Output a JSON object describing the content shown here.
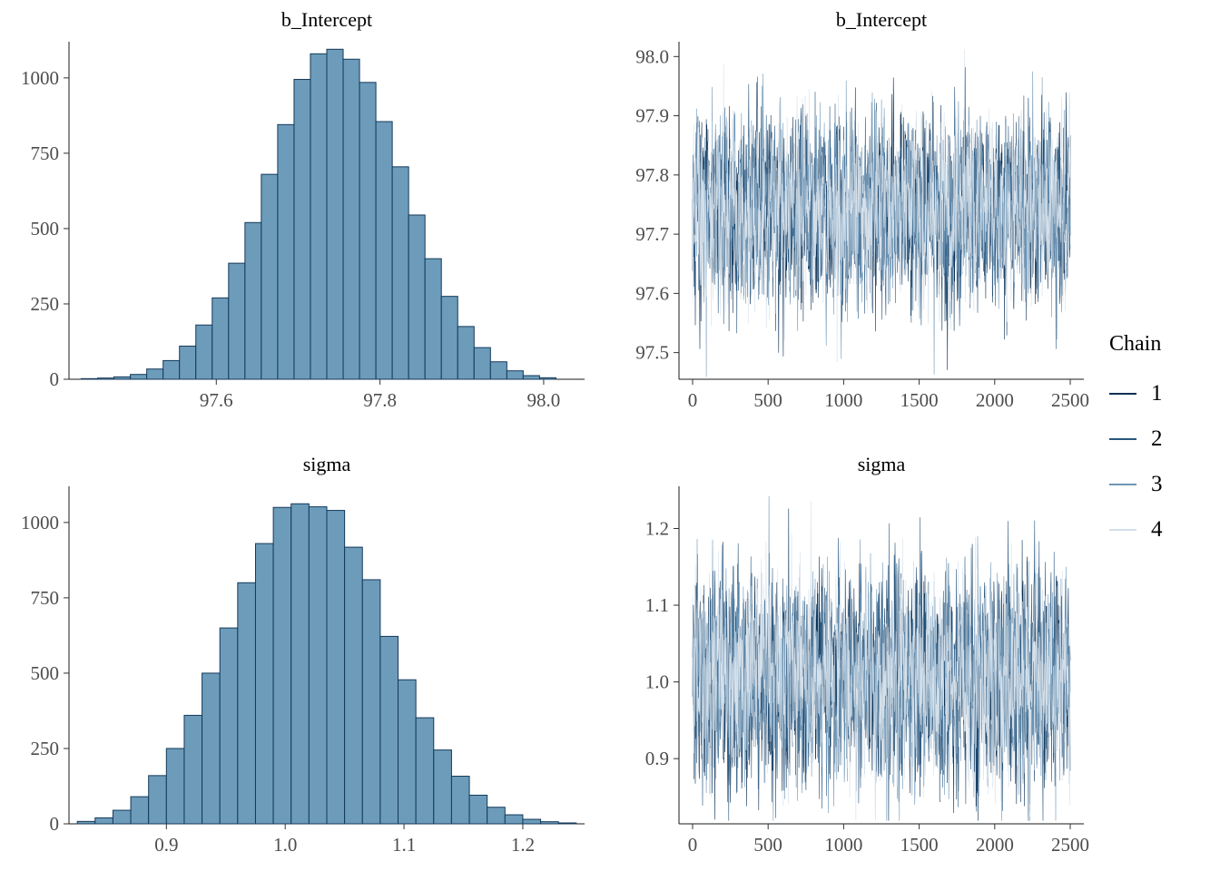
{
  "figure": {
    "background": "#ffffff",
    "description_title": "Posterior histograms and MCMC trace plots"
  },
  "style": {
    "hist_fill": "#6d9cba",
    "hist_stroke": "#14395a",
    "axis_color": "#1a1a1a",
    "tick_color": "#333333",
    "tick_label_color": "#4d4d4d",
    "title_color": "#000000"
  },
  "legend": {
    "title": "Chain",
    "entries": [
      {
        "label": "1",
        "color": "#0b3054"
      },
      {
        "label": "2",
        "color": "#28567e"
      },
      {
        "label": "3",
        "color": "#6e96b6"
      },
      {
        "label": "4",
        "color": "#d5e0ea"
      }
    ]
  },
  "chart_data": [
    {
      "type": "histogram",
      "title": "b_Intercept",
      "bin_start": 97.435,
      "bin_width": 0.02,
      "counts": [
        2,
        4,
        8,
        16,
        34,
        62,
        110,
        180,
        270,
        385,
        520,
        680,
        845,
        995,
        1080,
        1095,
        1062,
        985,
        855,
        705,
        545,
        400,
        275,
        175,
        105,
        58,
        28,
        12,
        5
      ],
      "xlim": [
        97.42,
        98.05
      ],
      "ylim": [
        0,
        1120
      ],
      "xticks": [
        97.6,
        97.8,
        98.0
      ],
      "xtick_labels": [
        "97.6",
        "97.8",
        "98.0"
      ],
      "yticks": [
        0,
        250,
        500,
        750,
        1000
      ],
      "ytick_labels": [
        "0",
        "250",
        "500",
        "750",
        "1000"
      ]
    },
    {
      "type": "trace",
      "title": "b_Intercept",
      "n_iterations": 2500,
      "n_chains": 4,
      "mean": 97.74,
      "sd": 0.075,
      "seed": 11,
      "xlim": [
        -90,
        2590
      ],
      "ylim": [
        97.455,
        98.025
      ],
      "xticks": [
        0,
        500,
        1000,
        1500,
        2000,
        2500
      ],
      "xtick_labels": [
        "0",
        "500",
        "1000",
        "1500",
        "2000",
        "2500"
      ],
      "yticks": [
        97.5,
        97.6,
        97.7,
        97.8,
        97.9,
        98.0
      ],
      "ytick_labels": [
        "97.5",
        "97.6",
        "97.7",
        "97.8",
        "97.9",
        "98.0"
      ]
    },
    {
      "type": "histogram",
      "title": "sigma",
      "bin_start": 0.825,
      "bin_width": 0.015,
      "counts": [
        8,
        20,
        45,
        90,
        160,
        250,
        360,
        500,
        650,
        800,
        930,
        1050,
        1062,
        1052,
        1040,
        918,
        810,
        622,
        478,
        352,
        245,
        158,
        95,
        55,
        30,
        15,
        7,
        3
      ],
      "xlim": [
        0.818,
        1.252
      ],
      "ylim": [
        0,
        1120
      ],
      "xticks": [
        0.9,
        1.0,
        1.1,
        1.2
      ],
      "xtick_labels": [
        "0.9",
        "1.0",
        "1.1",
        "1.2"
      ],
      "yticks": [
        0,
        250,
        500,
        750,
        1000
      ],
      "ytick_labels": [
        "0",
        "250",
        "500",
        "750",
        "1000"
      ]
    },
    {
      "type": "trace",
      "title": "sigma",
      "n_iterations": 2500,
      "n_chains": 4,
      "mean": 1.004,
      "sd": 0.066,
      "seed": 23,
      "xlim": [
        -90,
        2590
      ],
      "ylim": [
        0.815,
        1.255
      ],
      "xticks": [
        0,
        500,
        1000,
        1500,
        2000,
        2500
      ],
      "xtick_labels": [
        "0",
        "500",
        "1000",
        "1500",
        "2000",
        "2500"
      ],
      "yticks": [
        0.9,
        1.0,
        1.1,
        1.2
      ],
      "ytick_labels": [
        "0.9",
        "1.0",
        "1.1",
        "1.2"
      ]
    }
  ]
}
